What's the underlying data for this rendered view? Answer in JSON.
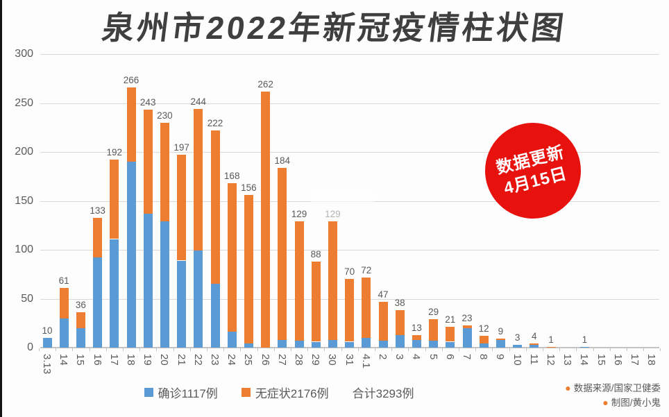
{
  "title": "泉州市2022年新冠疫情柱状图",
  "update_badge": {
    "line1": "数据更新",
    "line2": "4月15日"
  },
  "legend": {
    "confirmed_label": "确诊1117例",
    "asymptomatic_label": "无症状2176例",
    "total_label": "合计3293例"
  },
  "credits": {
    "source": "数据来源/国家卫健委",
    "author": "制图/黄小鬼"
  },
  "colors": {
    "confirmed": "#5b9bd5",
    "asymptomatic": "#ed7d31",
    "badge_red": "#e7110e",
    "text_gray": "#595959",
    "grid_gray": "#d9d9d9",
    "title_dark": "#3f3f3f"
  },
  "chart_data": {
    "type": "bar",
    "stacked": true,
    "title": "泉州市2022年新冠疫情柱状图",
    "categories": [
      "3.13",
      "14",
      "15",
      "16",
      "17",
      "18",
      "19",
      "20",
      "21",
      "22",
      "23",
      "24",
      "25",
      "26",
      "27",
      "28",
      "29",
      "30",
      "31",
      "4.1",
      "2",
      "3",
      "4",
      "5",
      "6",
      "7",
      "8",
      "9",
      "10",
      "11",
      "12",
      "13",
      "14",
      "15",
      "16",
      "17",
      "18"
    ],
    "series": [
      {
        "name": "确诊",
        "color": "#5b9bd5",
        "values": [
          10,
          30,
          20,
          92,
          111,
          190,
          137,
          129,
          89,
          99,
          65,
          16,
          4,
          0,
          8,
          7,
          6,
          8,
          6,
          10,
          7,
          13,
          8,
          7,
          6,
          20,
          4,
          8,
          3,
          3,
          0,
          0,
          1,
          0,
          0,
          0,
          0
        ]
      },
      {
        "name": "无症状",
        "color": "#ed7d31",
        "values": [
          0,
          31,
          16,
          41,
          81,
          76,
          106,
          101,
          108,
          145,
          157,
          152,
          152,
          262,
          176,
          122,
          82,
          121,
          64,
          62,
          40,
          25,
          5,
          22,
          15,
          3,
          8,
          1,
          0,
          1,
          1,
          0,
          0,
          0,
          0,
          0,
          0
        ]
      }
    ],
    "totals": [
      10,
      61,
      36,
      133,
      192,
      266,
      243,
      230,
      197,
      244,
      222,
      168,
      156,
      262,
      184,
      129,
      88,
      129,
      70,
      72,
      47,
      38,
      13,
      29,
      21,
      23,
      12,
      9,
      3,
      4,
      1,
      0,
      1,
      0,
      0,
      0,
      0
    ],
    "series_totals": {
      "confirmed": 1117,
      "asymptomatic": 2176,
      "all": 3293
    },
    "faded_label_index": 17,
    "ylim": [
      0,
      300
    ],
    "yticks": [
      0,
      50,
      100,
      150,
      200,
      250,
      300
    ],
    "grid": true,
    "legend_position": "bottom"
  }
}
